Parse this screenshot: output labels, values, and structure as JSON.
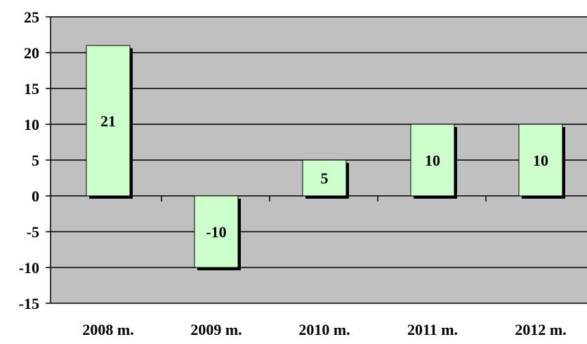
{
  "chart_data": {
    "type": "bar",
    "categories": [
      "2008 m.",
      "2009 m.",
      "2010 m.",
      "2011 m.",
      "2012 m."
    ],
    "values": [
      21,
      -10,
      5,
      10,
      10
    ],
    "data_labels": [
      "21",
      "-10",
      "5",
      "10",
      "10"
    ],
    "title": "",
    "xlabel": "",
    "ylabel": "",
    "ylim": [
      -15,
      25
    ],
    "yticks": [
      25,
      20,
      15,
      10,
      5,
      0,
      -5,
      -10,
      -15
    ],
    "grid": true,
    "legend": "none",
    "colors": {
      "plot_background": "#c0c0c0",
      "bar_fill": "#ccffcc",
      "bar_shadow": "#000000",
      "gridline": "#000000"
    }
  }
}
